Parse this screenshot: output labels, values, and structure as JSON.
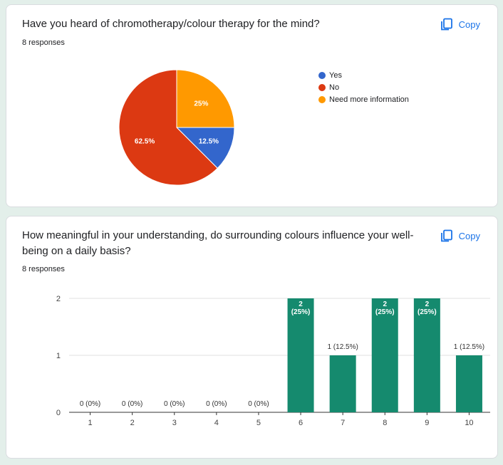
{
  "colors": {
    "accent": "#1a73e8",
    "bar": "#158a6e",
    "background": "#e3efea"
  },
  "card1": {
    "title": "Have you heard of chromotherapy/colour therapy for the mind?",
    "responses": "8 responses",
    "copy_label": "Copy",
    "copy_icon": "copy-icon"
  },
  "card2": {
    "title": "How meaningful in your understanding, do surrounding colours influence your well-being on a daily basis?",
    "responses": "8 responses",
    "copy_label": "Copy",
    "copy_icon": "copy-icon"
  },
  "chart_data": [
    {
      "type": "pie",
      "categories": [
        "Yes",
        "No",
        "Need more information"
      ],
      "values": [
        12.5,
        62.5,
        25
      ],
      "labels": [
        "12.5%",
        "62.5%",
        "25%"
      ],
      "colors": [
        "#3366cc",
        "#dc3912",
        "#ff9900"
      ],
      "legend": "right"
    },
    {
      "type": "bar",
      "categories": [
        "1",
        "2",
        "3",
        "4",
        "5",
        "6",
        "7",
        "8",
        "9",
        "10"
      ],
      "values": [
        0,
        0,
        0,
        0,
        0,
        2,
        1,
        2,
        2,
        1
      ],
      "labels": [
        "0 (0%)",
        "0 (0%)",
        "0 (0%)",
        "0 (0%)",
        "0 (0%)",
        "2 (25%)",
        "1 (12.5%)",
        "2 (25%)",
        "2 (25%)",
        "1 (12.5%)"
      ],
      "yticks": [
        "0",
        "1",
        "2"
      ],
      "ylim": [
        0,
        2
      ],
      "grid": true,
      "color": "#158a6e"
    }
  ]
}
